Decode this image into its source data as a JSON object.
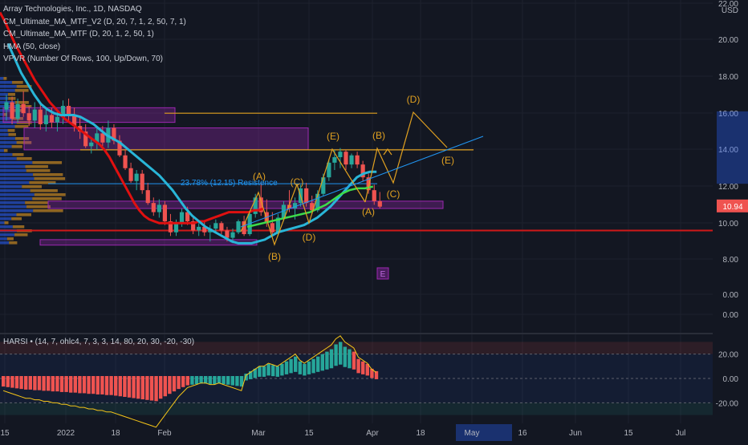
{
  "colors": {
    "background": "#131722",
    "grid": "#1e222d",
    "candle_up": "#26a69a",
    "candle_down": "#ef5350",
    "ma_red": "#e01010",
    "ma_cyan": "#29b6d8",
    "ma_green": "#3ddc4a",
    "wave": "#e0a020",
    "trend_blue": "#2196f3",
    "hline_red": "#d01818",
    "hline_orange": "#e0a020",
    "box_purple": "#9c27b0",
    "price_label": "#ef5350"
  },
  "legend": {
    "title": "Array Technologies, Inc., 1D, NASDAQ",
    "indicators": [
      "CM_Ultimate_MA_MTF_V2 (D, 20, 7, 1, 2, 50, 7, 1)",
      "CM_Ultimate_MA_MTF (D, 20, 1, 2, 50, 1)",
      "HMA (50, close)",
      "VPVR (Number Of Rows, 100, Up/Down, 70)"
    ]
  },
  "price_axis": {
    "currency": "USD",
    "ticks": [
      "22.00",
      "20.00",
      "18.00",
      "16.00",
      "14.00",
      "12.00",
      "10.00",
      "8.00",
      "0.00",
      "0.00"
    ],
    "current_price": "10.94"
  },
  "time_axis": {
    "ticks": [
      "15",
      "2022",
      "18",
      "Feb",
      "Mar",
      "15",
      "Apr",
      "18",
      "May",
      "16",
      "Jun",
      "15",
      "Jul"
    ],
    "highlight_label": "May"
  },
  "annotations": {
    "retracement": "23.78% (12.15) Resistence",
    "wave_labels": [
      "(A)",
      "(B)",
      "(C)",
      "(D)",
      "(E)",
      "(A)",
      "(B)",
      "(C)",
      "(D)",
      "(E)"
    ],
    "marker": "E"
  },
  "harsi": {
    "label": "HARSI • (14, 7, ohlc4, 7, 3, 3, 14, 80, 20, 30, -20, -30)",
    "ticks": [
      "20.00",
      "0.00",
      "-20.00"
    ]
  },
  "chart_data": {
    "type": "candlestick",
    "title": "Array Technologies, Inc., 1D, NASDAQ",
    "ylim": [
      7.0,
      22.0
    ],
    "unit": "USD",
    "ohlc": [
      [
        16.2,
        17.0,
        15.6,
        16.6
      ],
      [
        16.6,
        16.9,
        15.4,
        15.7
      ],
      [
        15.7,
        16.8,
        15.5,
        16.5
      ],
      [
        16.5,
        17.2,
        15.8,
        16.0
      ],
      [
        16.0,
        16.4,
        15.3,
        15.6
      ],
      [
        15.6,
        16.6,
        15.2,
        16.2
      ],
      [
        16.2,
        16.5,
        15.1,
        15.4
      ],
      [
        15.4,
        16.2,
        15.0,
        15.9
      ],
      [
        15.9,
        16.3,
        15.2,
        15.5
      ],
      [
        15.5,
        16.1,
        15.0,
        15.8
      ],
      [
        15.8,
        16.7,
        15.4,
        16.4
      ],
      [
        16.4,
        16.8,
        15.6,
        15.9
      ],
      [
        15.9,
        16.3,
        15.0,
        15.3
      ],
      [
        15.3,
        15.8,
        14.6,
        15.0
      ],
      [
        15.0,
        15.4,
        14.1,
        14.2
      ],
      [
        14.2,
        14.6,
        13.8,
        14.4
      ],
      [
        14.4,
        15.2,
        14.0,
        14.9
      ],
      [
        14.9,
        15.3,
        14.2,
        14.4
      ],
      [
        14.4,
        15.6,
        14.1,
        15.2
      ],
      [
        15.2,
        15.4,
        14.3,
        14.5
      ],
      [
        14.5,
        14.8,
        13.6,
        13.7
      ],
      [
        13.7,
        14.0,
        12.9,
        13.0
      ],
      [
        13.0,
        13.3,
        12.2,
        12.3
      ],
      [
        12.3,
        12.9,
        11.8,
        12.7
      ],
      [
        12.7,
        12.9,
        11.6,
        11.8
      ],
      [
        11.8,
        12.2,
        11.0,
        11.1
      ],
      [
        11.1,
        11.4,
        10.4,
        10.6
      ],
      [
        10.6,
        11.3,
        10.3,
        11.0
      ],
      [
        11.0,
        11.2,
        9.9,
        10.1
      ],
      [
        10.1,
        10.5,
        9.3,
        9.5
      ],
      [
        9.5,
        10.2,
        9.3,
        10.0
      ],
      [
        10.0,
        10.8,
        9.8,
        10.6
      ],
      [
        10.6,
        10.9,
        9.9,
        10.1
      ],
      [
        10.1,
        10.3,
        9.4,
        9.6
      ],
      [
        9.6,
        10.0,
        9.3,
        9.8
      ],
      [
        9.8,
        10.1,
        9.3,
        9.5
      ],
      [
        9.5,
        9.9,
        9.0,
        9.7
      ],
      [
        9.7,
        10.2,
        9.5,
        10.0
      ],
      [
        10.0,
        10.1,
        9.4,
        9.6
      ],
      [
        9.6,
        9.8,
        9.0,
        9.2
      ],
      [
        9.2,
        9.7,
        8.9,
        9.5
      ],
      [
        9.5,
        10.2,
        9.4,
        10.1
      ],
      [
        10.1,
        10.4,
        9.3,
        9.4
      ],
      [
        9.4,
        10.6,
        9.3,
        10.5
      ],
      [
        10.5,
        11.6,
        10.3,
        11.4
      ],
      [
        11.4,
        12.2,
        10.4,
        10.6
      ],
      [
        10.6,
        11.3,
        9.8,
        10.0
      ],
      [
        10.0,
        10.6,
        9.3,
        9.5
      ],
      [
        9.5,
        10.5,
        9.3,
        10.3
      ],
      [
        10.3,
        11.2,
        10.1,
        11.0
      ],
      [
        11.0,
        11.8,
        10.6,
        10.8
      ],
      [
        10.8,
        11.4,
        10.2,
        11.1
      ],
      [
        11.1,
        12.1,
        10.9,
        11.9
      ],
      [
        11.9,
        12.2,
        10.9,
        11.1
      ],
      [
        11.1,
        11.5,
        10.5,
        10.7
      ],
      [
        10.7,
        11.8,
        10.6,
        11.6
      ],
      [
        11.6,
        12.7,
        11.5,
        12.5
      ],
      [
        12.5,
        13.5,
        12.3,
        13.3
      ],
      [
        13.3,
        14.0,
        12.9,
        13.6
      ],
      [
        13.6,
        14.1,
        13.0,
        13.9
      ],
      [
        13.9,
        14.0,
        12.9,
        13.2
      ],
      [
        13.2,
        13.8,
        13.0,
        13.7
      ],
      [
        13.7,
        13.9,
        13.0,
        13.2
      ],
      [
        13.2,
        13.4,
        12.3,
        12.5
      ],
      [
        12.5,
        12.7,
        11.6,
        11.8
      ],
      [
        11.8,
        12.1,
        11.0,
        11.2
      ],
      [
        11.2,
        11.7,
        10.8,
        10.9
      ]
    ],
    "series": [
      {
        "values": [
          21.5,
          21.0,
          20.4,
          19.8,
          19.3,
          18.8,
          18.3,
          17.8,
          17.4,
          17.0,
          16.6,
          16.3,
          16.0,
          15.7,
          15.5,
          15.3,
          15.1,
          14.9,
          14.7,
          14.5,
          14.3,
          14.0,
          13.6,
          13.1,
          12.6,
          12.1,
          11.6,
          11.1,
          10.7,
          10.4,
          10.2,
          10.1,
          10.0,
          10.0,
          10.0,
          10.0,
          10.0,
          10.0,
          10.0,
          10.0,
          10.1,
          10.1,
          10.2,
          10.3,
          10.4,
          10.5,
          10.6,
          10.6,
          10.6,
          10.6,
          10.6,
          10.7,
          10.7,
          10.8
        ]
      },
      {
        "values": [
          19.8,
          19.0,
          18.2,
          17.6,
          17.0,
          16.5,
          16.2,
          16.0,
          15.9,
          15.9,
          15.9,
          15.8,
          15.6,
          15.4,
          15.1,
          14.8,
          14.6,
          14.4,
          14.1,
          13.8,
          13.5,
          13.2,
          12.9,
          12.6,
          12.2,
          11.8,
          11.3,
          10.8,
          10.4,
          10.1,
          9.8,
          9.6,
          9.4,
          9.2,
          9.0,
          8.9,
          8.9,
          8.9,
          9.0,
          9.1,
          9.3,
          9.5,
          9.6,
          9.7,
          9.8,
          9.9,
          10.1,
          10.3,
          10.6,
          10.9,
          11.3,
          11.7,
          12.1,
          12.5,
          12.7,
          12.8,
          12.8
        ]
      },
      {
        "values": [
          9.8,
          9.9,
          10.0,
          10.1,
          10.2,
          10.3,
          10.4,
          10.5,
          10.6,
          10.8,
          11.0,
          11.3,
          11.6,
          11.8,
          11.9,
          11.9,
          12.0
        ]
      }
    ],
    "levels": [
      {
        "price": 16.0,
        "label": "orange"
      },
      {
        "price": 14.0,
        "label": "orange"
      },
      {
        "price": 12.15,
        "label": "blue"
      },
      {
        "price": 9.6,
        "label": "red"
      }
    ],
    "zones": [
      {
        "from": 15.5,
        "to": 16.3
      },
      {
        "from": 14.0,
        "to": 15.2
      },
      {
        "from": 10.8,
        "to": 11.2
      },
      {
        "from": 8.8,
        "to": 9.1
      }
    ],
    "harsi_values": [
      -8,
      -9,
      -10,
      -11,
      -12,
      -13,
      -13,
      -14,
      -14,
      -15,
      -15,
      -16,
      -16,
      -17,
      -17,
      -18,
      -18,
      -19,
      -19,
      -20,
      -20,
      -21,
      -21,
      -22,
      -22,
      -23,
      -24,
      -25,
      -26,
      -27,
      -28,
      -29,
      -30,
      -31,
      -32,
      -28,
      -24,
      -20,
      -16,
      -12,
      -9,
      -6,
      -5,
      -4,
      -3,
      -3,
      -4,
      -4,
      -3,
      -4,
      -5,
      -6,
      -7,
      -8,
      2,
      4,
      6,
      8,
      8,
      10,
      9,
      8,
      10,
      12,
      14,
      16,
      12,
      10,
      12,
      14,
      16,
      18,
      20,
      22,
      26,
      28,
      24,
      22,
      20,
      14,
      12,
      10,
      6,
      4
    ]
  }
}
